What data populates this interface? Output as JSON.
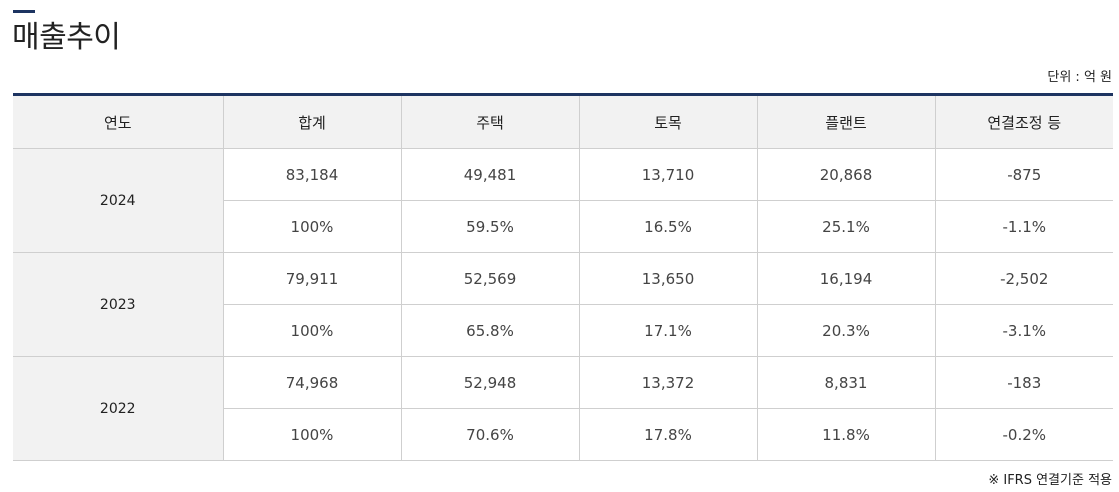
{
  "page": {
    "title": "매출추이",
    "unit": "단위 : 억 원",
    "footnote": "※ IFRS 연결기준 적용"
  },
  "table": {
    "headers": [
      "연도",
      "합계",
      "주택",
      "토목",
      "플랜트",
      "연결조정 등"
    ],
    "years": [
      {
        "year": "2024",
        "amounts": [
          "83,184",
          "49,481",
          "13,710",
          "20,868",
          "-875"
        ],
        "shares": [
          "100%",
          "59.5%",
          "16.5%",
          "25.1%",
          "-1.1%"
        ]
      },
      {
        "year": "2023",
        "amounts": [
          "79,911",
          "52,569",
          "13,650",
          "16,194",
          "-2,502"
        ],
        "shares": [
          "100%",
          "65.8%",
          "17.1%",
          "20.3%",
          "-3.1%"
        ]
      },
      {
        "year": "2022",
        "amounts": [
          "74,968",
          "52,948",
          "13,372",
          "8,831",
          "-183"
        ],
        "shares": [
          "100%",
          "70.6%",
          "17.8%",
          "11.8%",
          "-0.2%"
        ]
      }
    ]
  },
  "colors": {
    "accent": "#1d3461",
    "header_bg": "#f2f2f2",
    "border": "#cfcfcf"
  }
}
